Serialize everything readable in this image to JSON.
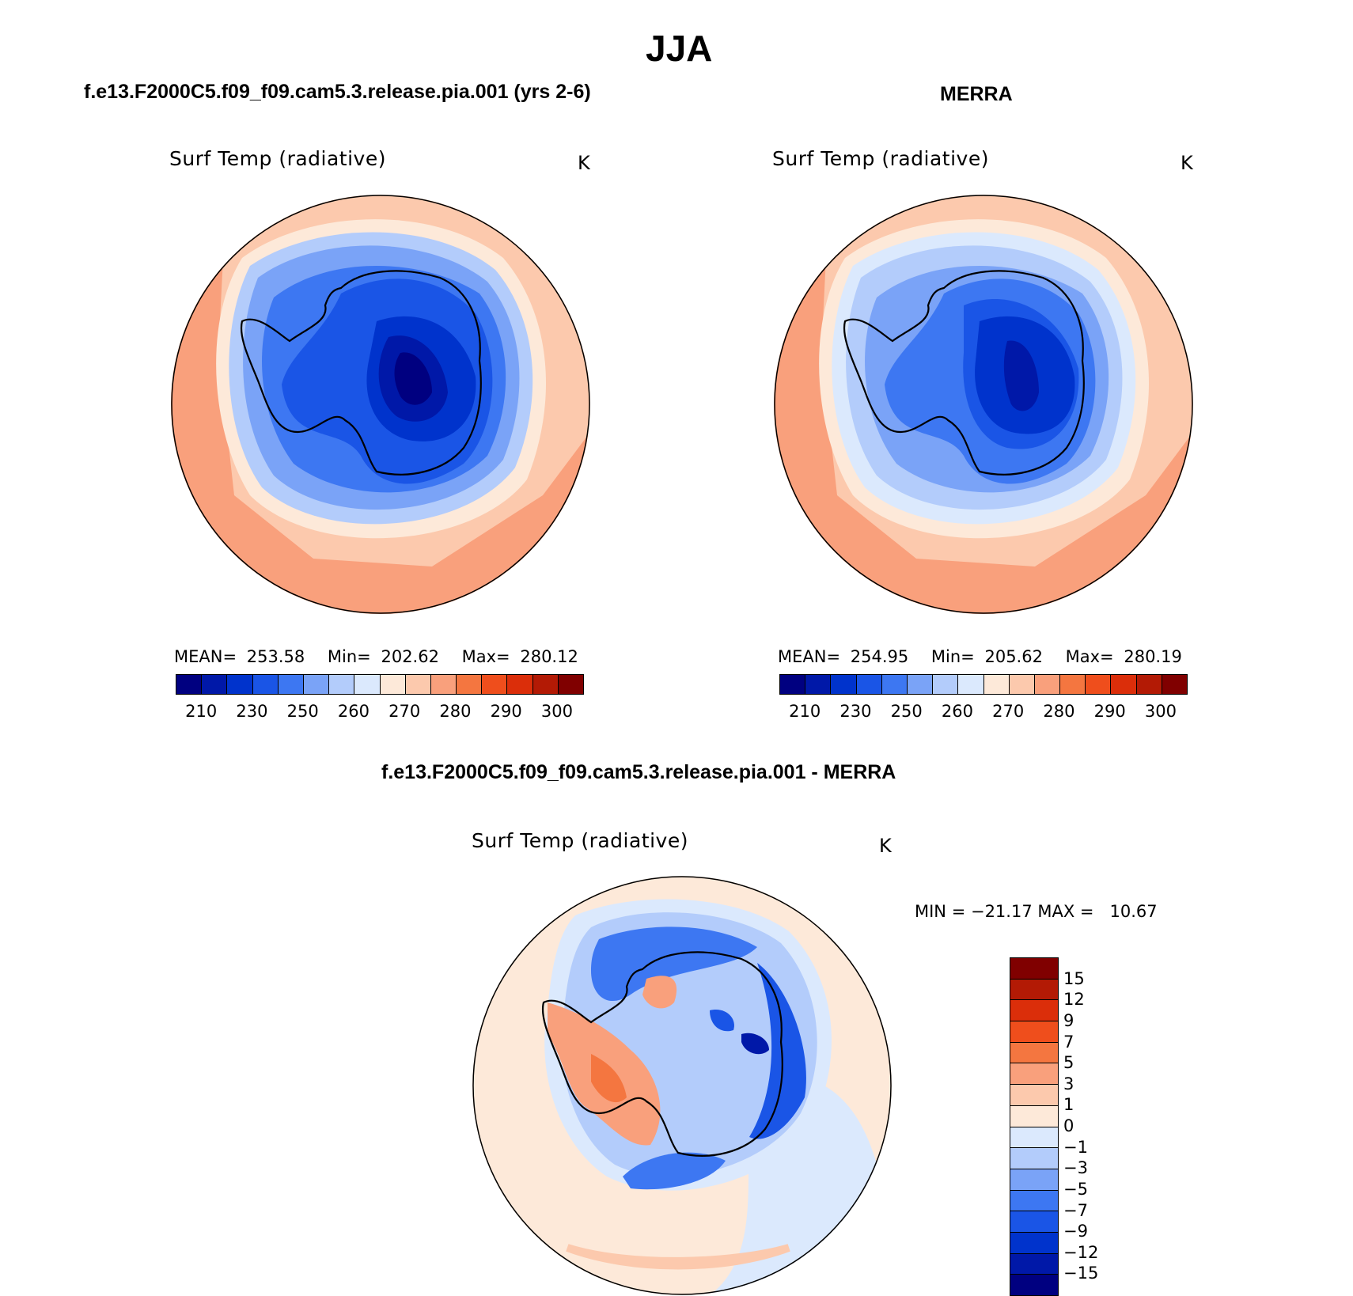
{
  "header": {
    "title": "JJA"
  },
  "panels": [
    {
      "heading": "f.e13.F2000C5.f09_f09.cam5.3.release.pia.001 (yrs 2-6)",
      "plot_title": "Surf Temp (radiative)",
      "units": "K",
      "stats": {
        "mean_label": "MEAN=",
        "mean": "253.58",
        "min_label": "Min=",
        "min": "202.62",
        "max_label": "Max=",
        "max": "280.12"
      }
    },
    {
      "heading": "MERRA",
      "plot_title": "Surf Temp (radiative)",
      "units": "K",
      "stats": {
        "mean_label": "MEAN=",
        "mean": "254.95",
        "min_label": "Min=",
        "min": "205.62",
        "max_label": "Max=",
        "max": "280.19"
      }
    }
  ],
  "diff_panel": {
    "heading": "f.e13.F2000C5.f09_f09.cam5.3.release.pia.001 - MERRA",
    "plot_title": "Surf Temp (radiative)",
    "units": "K",
    "minmax": "MIN = −21.17 MAX =   10.67"
  },
  "colorbar_abs": {
    "colors": [
      "#000080",
      "#0018a8",
      "#0033cc",
      "#1a55e6",
      "#3d77f2",
      "#7aa3f7",
      "#b3ccfb",
      "#dbe9fd",
      "#fde9d9",
      "#fcc9ad",
      "#f9a07c",
      "#f47640",
      "#ef4e1c",
      "#db2e0a",
      "#b31a05",
      "#800000"
    ],
    "labels": [
      "210",
      "230",
      "250",
      "260",
      "270",
      "280",
      "290",
      "300"
    ]
  },
  "colorbar_diff": {
    "colors_top_to_bottom": [
      "#800000",
      "#b31a05",
      "#db2e0a",
      "#ef4e1c",
      "#f47640",
      "#f9a07c",
      "#fcc9ad",
      "#fde9d9",
      "#dbe9fd",
      "#b3ccfb",
      "#7aa3f7",
      "#3d77f2",
      "#1a55e6",
      "#0033cc",
      "#0018a8",
      "#000080"
    ],
    "labels": [
      "15",
      "12",
      "9",
      "7",
      "5",
      "3",
      "1",
      "0",
      "−1",
      "−3",
      "−5",
      "−7",
      "−9",
      "−12",
      "−15"
    ]
  }
}
